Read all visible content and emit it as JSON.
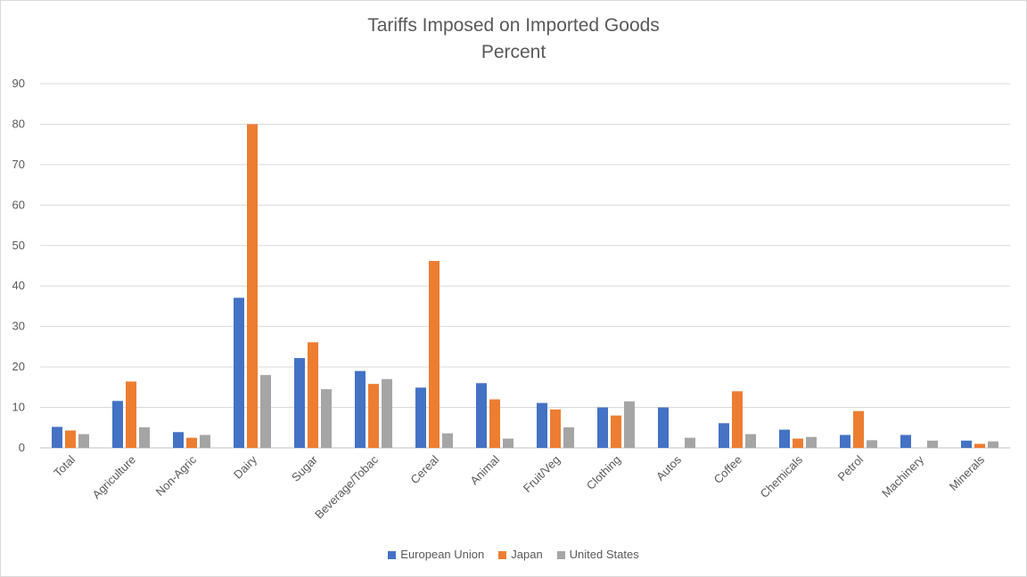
{
  "chart_data": {
    "type": "bar",
    "title": "Tariffs Imposed on Imported Goods",
    "subtitle": "Percent",
    "xlabel": "",
    "ylabel": "",
    "ylim": [
      0,
      90
    ],
    "yticks": [
      0,
      10,
      20,
      30,
      40,
      50,
      60,
      70,
      80,
      90
    ],
    "grid": true,
    "legend_position": "bottom",
    "categories": [
      "Total",
      "Agriculture",
      "Non-Agric",
      "Dairy",
      "Sugar",
      "Beverage/Tobac",
      "Cereal",
      "Animal",
      "Fruit/Veg",
      "Clothing",
      "Autos",
      "Coffee",
      "Chemicals",
      "Petrol",
      "Machinery",
      "Minerals"
    ],
    "series": [
      {
        "name": "European Union",
        "color": "#4472c4",
        "values": [
          5.2,
          11.6,
          3.9,
          37.1,
          22.2,
          19.0,
          14.9,
          16.0,
          11.1,
          10.0,
          10.0,
          6.1,
          4.5,
          3.2,
          3.2,
          1.8
        ]
      },
      {
        "name": "Japan",
        "color": "#ed7d31",
        "values": [
          4.3,
          16.4,
          2.5,
          80.0,
          26.1,
          15.8,
          46.2,
          12.0,
          9.5,
          8.0,
          0.0,
          14.0,
          2.3,
          9.1,
          0.0,
          1.0
        ]
      },
      {
        "name": "United States",
        "color": "#a5a5a5",
        "values": [
          3.4,
          5.1,
          3.2,
          18.0,
          14.5,
          17.0,
          3.6,
          2.3,
          5.1,
          11.5,
          2.5,
          3.4,
          2.7,
          1.9,
          1.8,
          1.6
        ]
      }
    ]
  }
}
